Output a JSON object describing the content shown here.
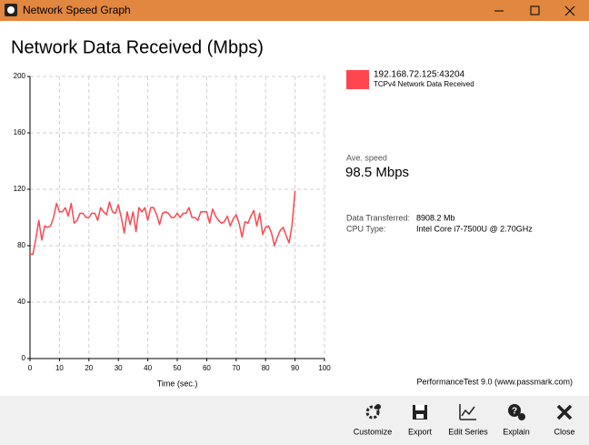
{
  "window": {
    "title": "Network Speed Graph"
  },
  "heading": "Network Data Received (Mbps)",
  "chart_data": {
    "type": "line",
    "xlabel": "Time (sec.)",
    "x": [
      0,
      1,
      2,
      3,
      4,
      5,
      6,
      7,
      8,
      9,
      10,
      11,
      12,
      13,
      14,
      15,
      16,
      17,
      18,
      19,
      20,
      21,
      22,
      23,
      24,
      25,
      26,
      27,
      28,
      29,
      30,
      31,
      32,
      33,
      34,
      35,
      36,
      37,
      38,
      39,
      40,
      41,
      42,
      43,
      44,
      45,
      46,
      47,
      48,
      49,
      50,
      51,
      52,
      53,
      54,
      55,
      56,
      57,
      58,
      59,
      60,
      61,
      62,
      63,
      64,
      65,
      66,
      67,
      68,
      69,
      70,
      71,
      72,
      73,
      74,
      75,
      76,
      77,
      78,
      79,
      80,
      81,
      82,
      83,
      84,
      85,
      86,
      87,
      88,
      89,
      90
    ],
    "series": [
      {
        "name": "192.168.72.125:43204",
        "color": "#ff4650",
        "values": [
          74,
          74,
          85,
          98,
          84,
          94,
          93,
          94,
          100,
          110,
          104,
          104,
          107,
          101,
          110,
          96,
          98,
          103,
          103,
          100,
          100,
          103,
          103,
          98,
          107,
          104,
          102,
          111,
          104,
          103,
          109,
          100,
          89,
          104,
          95,
          104,
          90,
          107,
          104,
          107,
          98,
          107,
          107,
          102,
          95,
          103,
          104,
          103,
          100,
          100,
          103,
          100,
          103,
          103,
          107,
          100,
          100,
          98,
          104,
          104,
          104,
          96,
          106,
          101,
          98,
          96,
          97,
          101,
          94,
          99,
          102,
          96,
          86,
          97,
          96,
          101,
          105,
          94,
          103,
          88,
          93,
          94,
          89,
          80,
          86,
          91,
          93,
          87,
          82,
          95,
          119
        ]
      }
    ],
    "xlim": [
      0,
      100
    ],
    "ylim": [
      0,
      200
    ],
    "xticks": [
      0,
      10,
      20,
      30,
      40,
      50,
      60,
      70,
      80,
      90,
      100
    ],
    "yticks": [
      0,
      40,
      80,
      120,
      160,
      200
    ],
    "grid": true
  },
  "legend": {
    "subtitle": "TCPv4 Network Data Received"
  },
  "stats": {
    "avg_label": "Ave. speed",
    "avg_value": "98.5 Mbps",
    "transferred_label": "Data Transferred:",
    "transferred_value": "8908.2 Mb",
    "cpu_label": "CPU Type:",
    "cpu_value": "Intel Core i7-7500U @ 2.70GHz"
  },
  "footer": "PerformanceTest 9.0 (www.passmark.com)",
  "toolbar": [
    "Customize",
    "Export",
    "Edit Series",
    "Explain",
    "Close"
  ]
}
